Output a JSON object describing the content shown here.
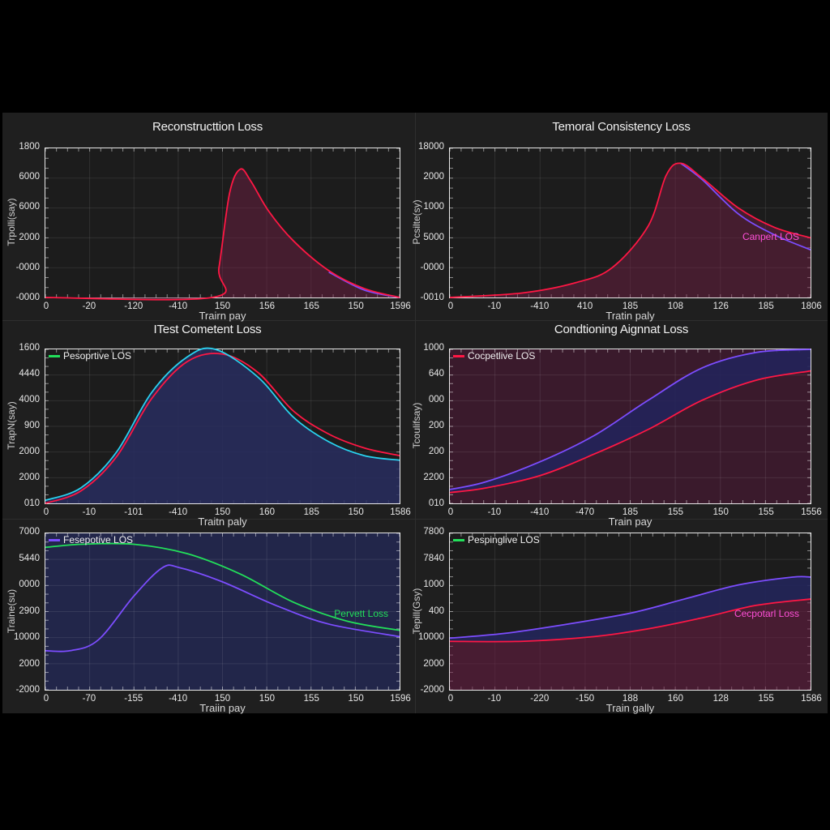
{
  "chart_data": [
    {
      "type": "area",
      "title": "Reconstructtion Loss",
      "xlabel": "Trairn pay",
      "ylabel": "Trpolli(say)",
      "yticks": [
        "1800",
        "6000",
        "6000",
        "2000",
        "-0000",
        "-0000"
      ],
      "xticks": [
        "0",
        "-20",
        "-120",
        "-410",
        "150",
        "156",
        "165",
        "150",
        "1596"
      ],
      "grid": true,
      "legend": null,
      "series": [
        {
          "name": "red",
          "color": "#ff1744",
          "points": [
            [
              0,
              0
            ],
            [
              0.47,
              0
            ],
            [
              0.49,
              0.2
            ],
            [
              0.52,
              0.7
            ],
            [
              0.55,
              0.86
            ],
            [
              0.58,
              0.78
            ],
            [
              0.63,
              0.58
            ],
            [
              0.7,
              0.38
            ],
            [
              0.8,
              0.18
            ],
            [
              0.9,
              0.06
            ],
            [
              1.0,
              0.0
            ]
          ]
        },
        {
          "name": "purple",
          "color": "#7c4dff",
          "points": [
            [
              0.8,
              0.17
            ],
            [
              0.9,
              0.05
            ],
            [
              1.0,
              0.0
            ]
          ]
        }
      ]
    },
    {
      "type": "area",
      "title": "Temoral Consistency Loss",
      "xlabel": "Tratin paly",
      "ylabel": "Pcsilte(sy)",
      "yticks": [
        "18000",
        "2000",
        "1000",
        "5000",
        "-0000",
        "-0010"
      ],
      "xticks": [
        "0",
        "-10",
        "-410",
        "410",
        "185",
        "108",
        "126",
        "185",
        "1806"
      ],
      "grid": true,
      "annotation": {
        "text": "Canpert LOS",
        "color": "#ff4fd8"
      },
      "series": [
        {
          "name": "red",
          "color": "#ff1744",
          "points": [
            [
              0,
              0
            ],
            [
              0.2,
              0.03
            ],
            [
              0.35,
              0.1
            ],
            [
              0.45,
              0.2
            ],
            [
              0.55,
              0.48
            ],
            [
              0.6,
              0.82
            ],
            [
              0.64,
              0.9
            ],
            [
              0.7,
              0.8
            ],
            [
              0.8,
              0.6
            ],
            [
              0.9,
              0.47
            ],
            [
              1.0,
              0.4
            ]
          ]
        },
        {
          "name": "purple",
          "color": "#7c4dff",
          "points": [
            [
              0.64,
              0.9
            ],
            [
              0.7,
              0.79
            ],
            [
              0.8,
              0.56
            ],
            [
              0.9,
              0.42
            ],
            [
              1.0,
              0.32
            ]
          ]
        }
      ]
    },
    {
      "type": "area",
      "title": "ITest Cometent Loss",
      "xlabel": "Traitn paly",
      "ylabel": "TrapN(say)",
      "yticks": [
        "1600",
        "4440",
        "4000",
        "900",
        "2000",
        "2000",
        "010"
      ],
      "xticks": [
        "0",
        "-10",
        "-101",
        "-410",
        "150",
        "160",
        "185",
        "150",
        "1586"
      ],
      "grid": true,
      "legend": {
        "label": "Pesoprtive LOS",
        "color": "#22e05a"
      },
      "series": [
        {
          "name": "cyan",
          "color": "#29d3f0",
          "points": [
            [
              0,
              0.02
            ],
            [
              0.1,
              0.1
            ],
            [
              0.2,
              0.33
            ],
            [
              0.3,
              0.72
            ],
            [
              0.4,
              0.95
            ],
            [
              0.48,
              1.0
            ],
            [
              0.6,
              0.82
            ],
            [
              0.7,
              0.56
            ],
            [
              0.8,
              0.4
            ],
            [
              0.9,
              0.31
            ],
            [
              1.0,
              0.28
            ]
          ]
        },
        {
          "name": "red",
          "color": "#ff1744",
          "points": [
            [
              0,
              0.0
            ],
            [
              0.1,
              0.08
            ],
            [
              0.2,
              0.3
            ],
            [
              0.3,
              0.68
            ],
            [
              0.4,
              0.92
            ],
            [
              0.5,
              0.97
            ],
            [
              0.6,
              0.85
            ],
            [
              0.7,
              0.6
            ],
            [
              0.8,
              0.45
            ],
            [
              0.9,
              0.36
            ],
            [
              1.0,
              0.31
            ]
          ]
        }
      ]
    },
    {
      "type": "area",
      "title": "Condtioning Aignnat Loss",
      "xlabel": "Train pay",
      "ylabel": "Tcoulifsay)",
      "yticks": [
        "1000",
        "640",
        "000",
        "200",
        "200",
        "2200",
        "010"
      ],
      "xticks": [
        "0",
        "-10",
        "-410",
        "-470",
        "185",
        "155",
        "150",
        "155",
        "1556"
      ],
      "grid": true,
      "legend": {
        "label": "Cocpetlive LOS",
        "color": "#ff1744"
      },
      "series": [
        {
          "name": "purple",
          "color": "#7c4dff",
          "points": [
            [
              0,
              0.09
            ],
            [
              0.1,
              0.14
            ],
            [
              0.25,
              0.27
            ],
            [
              0.4,
              0.44
            ],
            [
              0.55,
              0.67
            ],
            [
              0.7,
              0.88
            ],
            [
              0.85,
              0.98
            ],
            [
              1.0,
              1.0
            ]
          ]
        },
        {
          "name": "red",
          "color": "#ff1744",
          "points": [
            [
              0,
              0.07
            ],
            [
              0.1,
              0.1
            ],
            [
              0.25,
              0.18
            ],
            [
              0.4,
              0.32
            ],
            [
              0.55,
              0.48
            ],
            [
              0.7,
              0.67
            ],
            [
              0.85,
              0.8
            ],
            [
              1.0,
              0.86
            ]
          ]
        }
      ]
    },
    {
      "type": "line",
      "title": "",
      "xlabel": "Traiin pay",
      "ylabel": "Traine(su)",
      "yticks": [
        "7000",
        "5440",
        "0000",
        "2900",
        "10000",
        "2000",
        "-2000"
      ],
      "xticks": [
        "0",
        "-70",
        "-155",
        "-410",
        "150",
        "150",
        "155",
        "150",
        "1596"
      ],
      "grid": true,
      "legend": {
        "label": "Fesepotive LOS",
        "color": "#7c4dff"
      },
      "annotation": {
        "text": "Pervett Loss",
        "color": "#22e05a"
      },
      "series": [
        {
          "name": "green",
          "color": "#22e05a",
          "points": [
            [
              0,
              0.91
            ],
            [
              0.1,
              0.93
            ],
            [
              0.25,
              0.93
            ],
            [
              0.4,
              0.87
            ],
            [
              0.55,
              0.74
            ],
            [
              0.7,
              0.56
            ],
            [
              0.85,
              0.44
            ],
            [
              1.0,
              0.38
            ]
          ]
        },
        {
          "name": "purple",
          "color": "#7c4dff",
          "points": [
            [
              0,
              0.25
            ],
            [
              0.07,
              0.25
            ],
            [
              0.15,
              0.32
            ],
            [
              0.25,
              0.6
            ],
            [
              0.33,
              0.78
            ],
            [
              0.38,
              0.78
            ],
            [
              0.5,
              0.69
            ],
            [
              0.65,
              0.54
            ],
            [
              0.8,
              0.42
            ],
            [
              1.0,
              0.34
            ]
          ]
        }
      ]
    },
    {
      "type": "area",
      "title": "",
      "xlabel": "Train gally",
      "ylabel": "Tepill(Gsy)",
      "yticks": [
        "7800",
        "7840",
        "1000",
        "400",
        "10000",
        "2000",
        "-2000"
      ],
      "xticks": [
        "0",
        "-10",
        "-220",
        "-150",
        "188",
        "160",
        "128",
        "155",
        "1586"
      ],
      "grid": true,
      "legend": {
        "label": "Pespinglive LOS",
        "color": "#22e05a"
      },
      "annotation": {
        "text": "Cecpotarl Loss",
        "color": "#ff4fd8"
      },
      "series": [
        {
          "name": "purple",
          "color": "#7c4dff",
          "points": [
            [
              0,
              0.33
            ],
            [
              0.15,
              0.36
            ],
            [
              0.3,
              0.41
            ],
            [
              0.5,
              0.49
            ],
            [
              0.65,
              0.58
            ],
            [
              0.8,
              0.67
            ],
            [
              0.95,
              0.72
            ],
            [
              1.0,
              0.72
            ]
          ]
        },
        {
          "name": "red",
          "color": "#ff1744",
          "points": [
            [
              0,
              0.31
            ],
            [
              0.2,
              0.31
            ],
            [
              0.4,
              0.34
            ],
            [
              0.55,
              0.39
            ],
            [
              0.7,
              0.46
            ],
            [
              0.85,
              0.54
            ],
            [
              1.0,
              0.58
            ]
          ]
        }
      ]
    }
  ]
}
